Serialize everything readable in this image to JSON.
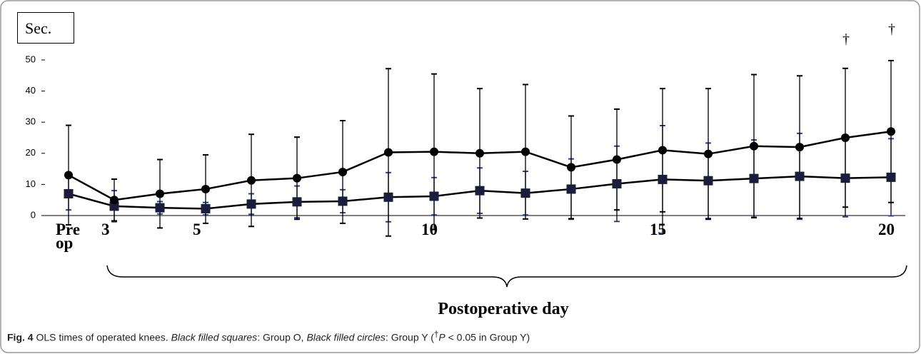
{
  "chart_data": {
    "type": "line",
    "y_label": "Sec.",
    "x_label": "Postoperative day",
    "categories": [
      "Pre op",
      "3",
      null,
      "5",
      null,
      null,
      null,
      null,
      "10",
      null,
      null,
      null,
      null,
      "15",
      null,
      null,
      null,
      null,
      "20"
    ],
    "series": [
      {
        "marker": "square",
        "color": "#1c1c3c",
        "error_color": "#2b3fa0",
        "values": [
          7,
          3,
          2.5,
          2.2,
          3.7,
          4.4,
          4.6,
          5.9,
          6.2,
          8,
          7.2,
          8.5,
          10.2,
          11.6,
          11.2,
          11.9,
          12.6,
          12,
          12.3
        ],
        "errors": [
          5.2,
          5,
          2,
          2,
          3.3,
          5.1,
          3.7,
          7.9,
          6,
          7.3,
          7,
          9.7,
          12.1,
          17.3,
          12.1,
          12.4,
          13.8,
          12.4,
          12.4
        ]
      },
      {
        "marker": "circle",
        "color": "#000000",
        "error_color": "#000000",
        "values": [
          13,
          5,
          7,
          8.5,
          11.3,
          12,
          14,
          20.3,
          20.5,
          20,
          20.5,
          15.5,
          18,
          21,
          19.8,
          22.3,
          22,
          25,
          27
        ],
        "errors": [
          16,
          6.7,
          11,
          11,
          14.8,
          13.2,
          16.5,
          26.9,
          25,
          20.8,
          21.6,
          16.5,
          16.2,
          19.8,
          21,
          23,
          22.9,
          22.3,
          22.8
        ]
      }
    ],
    "annotations": [
      "†",
      "†"
    ],
    "ylim": [
      0,
      50
    ],
    "yticks": [
      0,
      10,
      20,
      30,
      40,
      50
    ],
    "grid": false
  },
  "caption": {
    "label": "Fig. 4",
    "parts": [
      " OLS times of operated knees. ",
      "Black filled squares",
      ": Group O, ",
      "Black filled circles",
      ": Group Y (",
      "†",
      "P",
      " < 0.05 in Group Y)"
    ]
  }
}
